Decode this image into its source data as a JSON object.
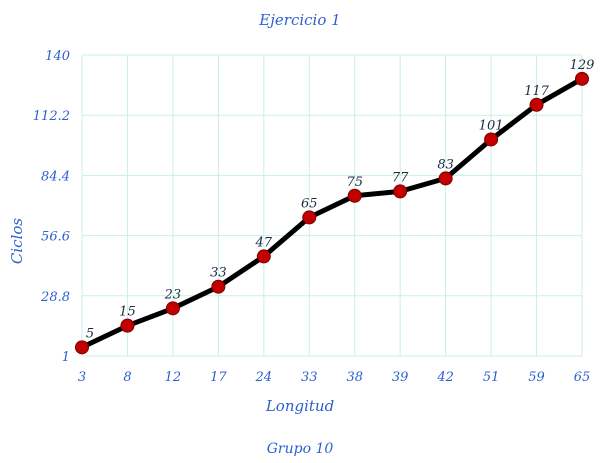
{
  "chart_data": {
    "type": "line",
    "title": "Ejercicio 1",
    "subtitle": "Grupo 10",
    "xlabel": "Longitud",
    "ylabel": "Ciclos",
    "categories": [
      "3",
      "8",
      "12",
      "17",
      "24",
      "33",
      "38",
      "39",
      "42",
      "51",
      "59",
      "65"
    ],
    "series": [
      {
        "values": [
          5,
          15,
          23,
          33,
          47,
          65,
          75,
          77,
          83,
          101,
          117,
          129
        ]
      }
    ],
    "ylim": [
      1,
      140
    ],
    "yticks": [
      "1",
      "28.8",
      "56.6",
      "84.4",
      "112.2",
      "140"
    ],
    "grid": true,
    "colors": {
      "line": "#000000",
      "marker": "#c20000",
      "grid": "#c9f1e1",
      "text": "#2d5fd1"
    }
  }
}
